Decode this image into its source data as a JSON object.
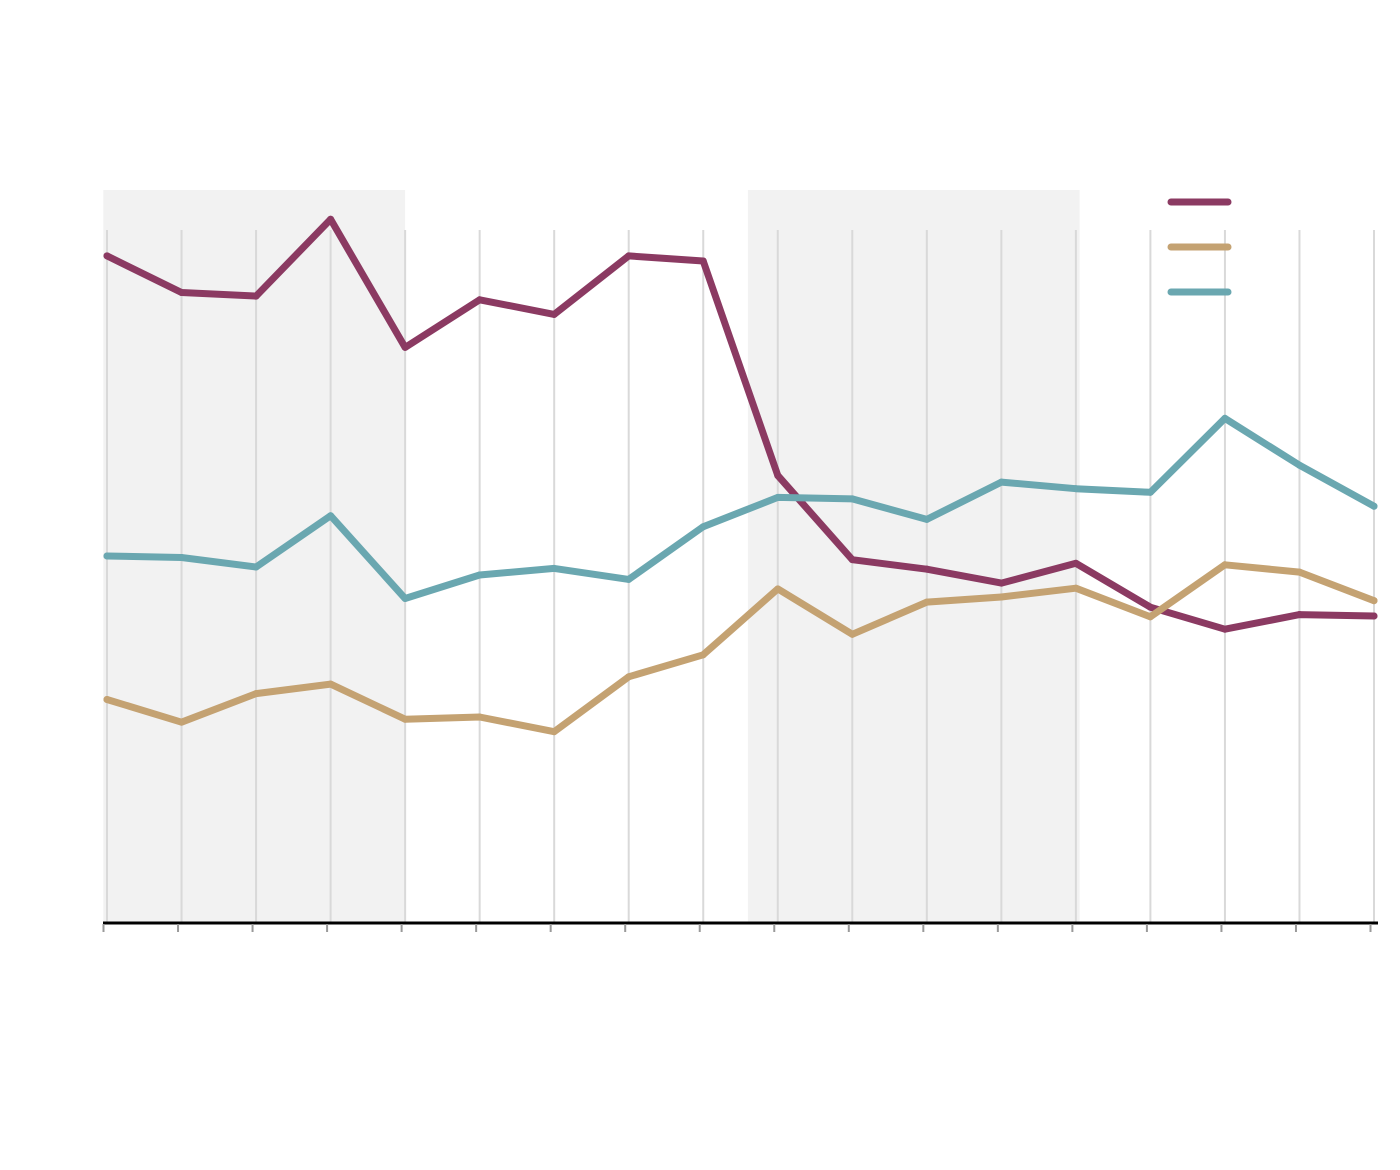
{
  "chart_data": {
    "type": "line",
    "x": [
      1,
      2,
      3,
      4,
      5,
      6,
      7,
      8,
      9,
      10,
      11,
      12,
      13,
      14,
      15,
      16,
      17,
      18
    ],
    "ylim": [
      0,
      100
    ],
    "grid": "vertical",
    "legend": "top-right",
    "shaded_ranges": [
      [
        0.95,
        5.0
      ],
      [
        9.6,
        14.05
      ]
    ],
    "series": [
      {
        "color": "#8b3a62",
        "values": [
          91,
          86,
          85.5,
          96,
          78.5,
          85,
          83,
          91,
          90.3,
          61,
          49.5,
          48.2,
          46.3,
          49,
          43,
          40,
          42,
          41.8
        ]
      },
      {
        "color": "#c4a272",
        "values": [
          30.4,
          27.3,
          31.2,
          32.5,
          27.7,
          28,
          26,
          33.5,
          36.5,
          45.5,
          39.3,
          43.7,
          44.4,
          45.6,
          41.7,
          48.8,
          47.8,
          43.9
        ]
      },
      {
        "color": "#6aa7b0",
        "values": [
          50,
          49.8,
          48.5,
          55.5,
          44.2,
          47.4,
          48.3,
          46.8,
          54,
          58,
          57.8,
          55,
          60.1,
          59.2,
          58.7,
          68.8,
          62.4,
          56.8
        ]
      }
    ]
  }
}
